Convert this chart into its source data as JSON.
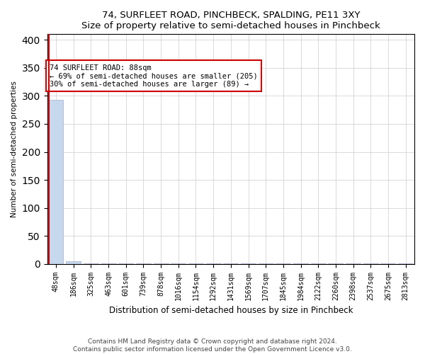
{
  "title": "74, SURFLEET ROAD, PINCHBECK, SPALDING, PE11 3XY",
  "subtitle": "Size of property relative to semi-detached houses in Pinchbeck",
  "xlabel": "Distribution of semi-detached houses by size in Pinchbeck",
  "ylabel": "Number of semi-detached properties",
  "categories": [
    "48sqm",
    "186sqm",
    "325sqm",
    "463sqm",
    "601sqm",
    "739sqm",
    "878sqm",
    "1016sqm",
    "1154sqm",
    "1292sqm",
    "1431sqm",
    "1569sqm",
    "1707sqm",
    "1845sqm",
    "1984sqm",
    "2122sqm",
    "2260sqm",
    "2398sqm",
    "2537sqm",
    "2675sqm",
    "2813sqm"
  ],
  "values": [
    293,
    5,
    1,
    1,
    1,
    1,
    1,
    1,
    1,
    1,
    1,
    1,
    1,
    1,
    1,
    1,
    1,
    1,
    1,
    1,
    1
  ],
  "red_line_index": 0,
  "highlight_color": "#cc0000",
  "normal_color": "#c5d8ed",
  "annotation_text": "74 SURFLEET ROAD: 88sqm\n← 69% of semi-detached houses are smaller (205)\n30% of semi-detached houses are larger (89) →",
  "footer": "Contains HM Land Registry data © Crown copyright and database right 2024.\nContains public sector information licensed under the Open Government Licence v3.0.",
  "ylim": [
    0,
    410
  ],
  "yticks": [
    0,
    50,
    100,
    150,
    200,
    250,
    300,
    350,
    400
  ],
  "figsize": [
    6.0,
    5.0
  ],
  "dpi": 100
}
